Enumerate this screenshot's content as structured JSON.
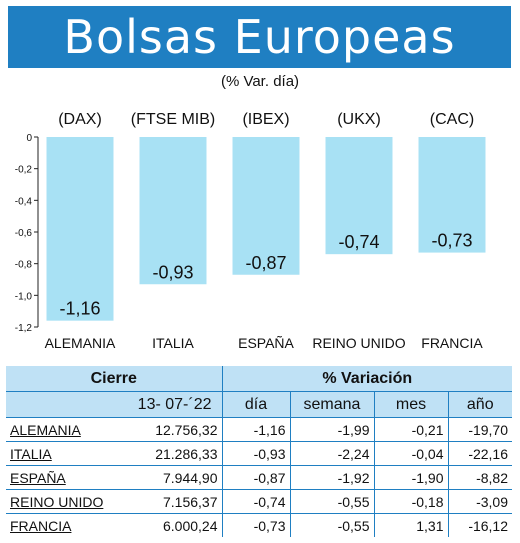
{
  "header": {
    "title": "Bolsas Europeas",
    "subtitle": "(% Var. día)"
  },
  "colors": {
    "banner": "#1f7fc2",
    "bar": "#a8e1f4",
    "table_header": "#bfe1f5",
    "rule": "#1f7fc2"
  },
  "chart_data": {
    "type": "bar",
    "indices": [
      "(DAX)",
      "(FTSE MIB)",
      "(IBEX)",
      "(UKX)",
      "(CAC)"
    ],
    "categories": [
      "ALEMANIA",
      "ITALIA",
      "ESPAÑA",
      "REINO UNIDO",
      "FRANCIA"
    ],
    "values": [
      -1.16,
      -0.93,
      -0.87,
      -0.74,
      -0.73
    ],
    "value_labels": [
      "-1,16",
      "-0,93",
      "-0,87",
      "-0,74",
      "-0,73"
    ],
    "ylim": [
      -1.2,
      0
    ],
    "yticks": [
      0,
      -0.2,
      -0.4,
      -0.6,
      -0.8,
      -1.0,
      -1.2
    ],
    "ytick_labels": [
      "0",
      "-0,2",
      "-0,4",
      "-0,6",
      "-0,8",
      "-1,0",
      "-1,2"
    ],
    "grid": false
  },
  "table": {
    "group_headers": {
      "cierre": "Cierre",
      "variacion": "% Variación"
    },
    "date": "13- 07-´22",
    "columns": [
      "día",
      "semana",
      "mes",
      "año"
    ],
    "rows": [
      {
        "name": "ALEMANIA",
        "cierre": "12.756,32",
        "dia": "-1,16",
        "semana": "-1,99",
        "mes": "-0,21",
        "ano": "-19,70"
      },
      {
        "name": "ITALIA",
        "cierre": "21.286,33",
        "dia": "-0,93",
        "semana": "-2,24",
        "mes": "-0,04",
        "ano": "-22,16"
      },
      {
        "name": "ESPAÑA",
        "cierre": "7.944,90",
        "dia": "-0,87",
        "semana": "-1,92",
        "mes": "-1,90",
        "ano": "-8,82"
      },
      {
        "name": "REINO UNIDO",
        "cierre": "7.156,37",
        "dia": "-0,74",
        "semana": "-0,55",
        "mes": "-0,18",
        "ano": "-3,09"
      },
      {
        "name": "FRANCIA",
        "cierre": "6.000,24",
        "dia": "-0,73",
        "semana": "-0,55",
        "mes": "1,31",
        "ano": "-16,12"
      }
    ]
  }
}
